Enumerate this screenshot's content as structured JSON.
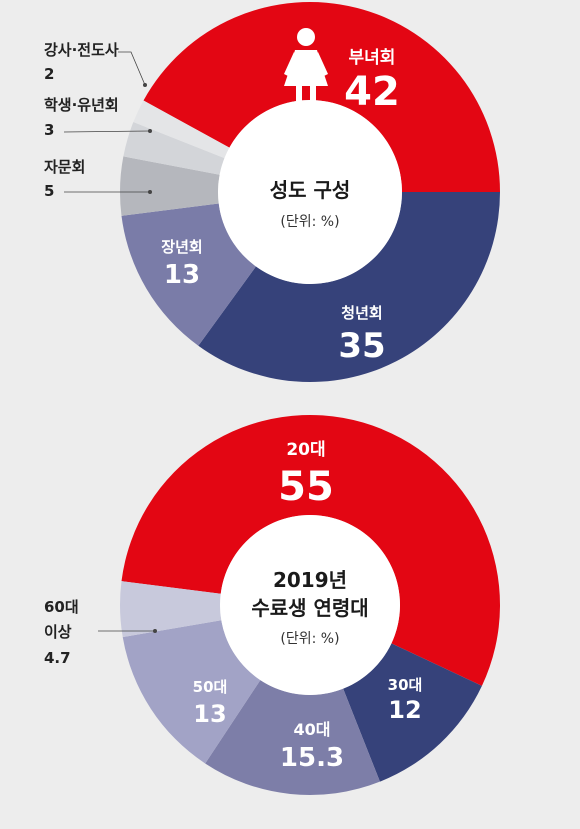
{
  "chart_data": [
    {
      "type": "pie",
      "title": "성도 구성",
      "subtitle": "(단위: %)",
      "categories": [
        "부녀회",
        "청년회",
        "장년회",
        "자문회",
        "학생·유년회",
        "강사·전도사"
      ],
      "values": [
        42,
        35,
        13,
        5,
        3,
        2
      ],
      "value_labels": [
        "42",
        "35",
        "13",
        "5",
        "3",
        "2"
      ],
      "colors": [
        "#e30613",
        "#36427a",
        "#7a7ca8",
        "#b5b7bd",
        "#d3d5d9",
        "#e4e5e7"
      ],
      "shape": "donut",
      "direction": "clockwise",
      "label_placement": [
        "inside",
        "inside",
        "inside",
        "outside-left",
        "outside-left",
        "outside-left"
      ],
      "icon": "woman-icon"
    },
    {
      "type": "pie",
      "title": "2019년",
      "title_line2": "수료생 연령대",
      "subtitle": "(단위: %)",
      "categories": [
        "20대",
        "30대",
        "40대",
        "50대",
        "60대 이상"
      ],
      "label_lines": [
        [
          "20대"
        ],
        [
          "30대"
        ],
        [
          "40대"
        ],
        [
          "50대"
        ],
        [
          "60대",
          "이상"
        ]
      ],
      "values": [
        55,
        12,
        15.3,
        13,
        4.7
      ],
      "value_labels": [
        "55",
        "12",
        "15.3",
        "13",
        "4.7"
      ],
      "colors": [
        "#e30613",
        "#36427a",
        "#7d7ea8",
        "#a2a3c6",
        "#c8c9dc"
      ],
      "shape": "donut",
      "direction": "clockwise",
      "label_placement": [
        "inside",
        "inside",
        "inside",
        "inside",
        "outside-left"
      ]
    }
  ]
}
